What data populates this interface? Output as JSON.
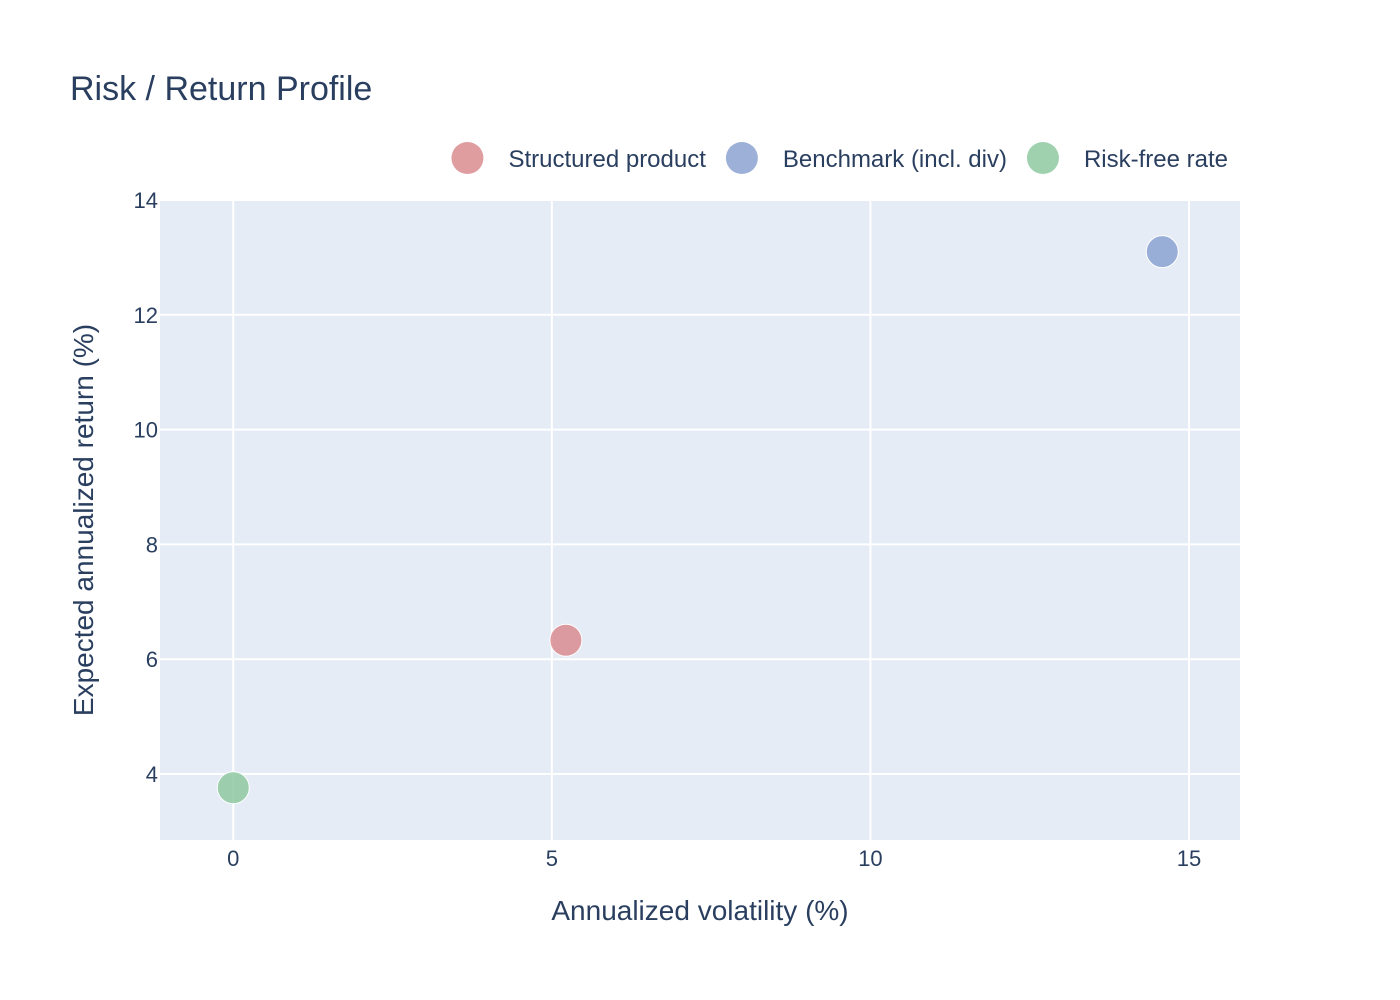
{
  "chart_data": {
    "type": "scatter",
    "title": "Risk / Return Profile",
    "xlabel": "Annualized volatility (%)",
    "ylabel": "Expected annualized return (%)",
    "xlim": [
      -1.15,
      15.8
    ],
    "ylim": [
      2.85,
      14
    ],
    "xticks": [
      0,
      5,
      10,
      15
    ],
    "yticks": [
      4,
      6,
      8,
      10,
      12,
      14
    ],
    "grid": true,
    "legend_position": "top-right",
    "plot_background": "#e5ecf6",
    "series": [
      {
        "name": "Structured product",
        "color": "#d98c8f",
        "x": [
          5.22
        ],
        "y": [
          6.33
        ]
      },
      {
        "name": "Benchmark (incl. div)",
        "color": "#8ca3d1",
        "x": [
          14.58
        ],
        "y": [
          13.1
        ]
      },
      {
        "name": "Risk-free rate",
        "color": "#8fc9a1",
        "x": [
          0.0
        ],
        "y": [
          3.76
        ]
      }
    ]
  }
}
